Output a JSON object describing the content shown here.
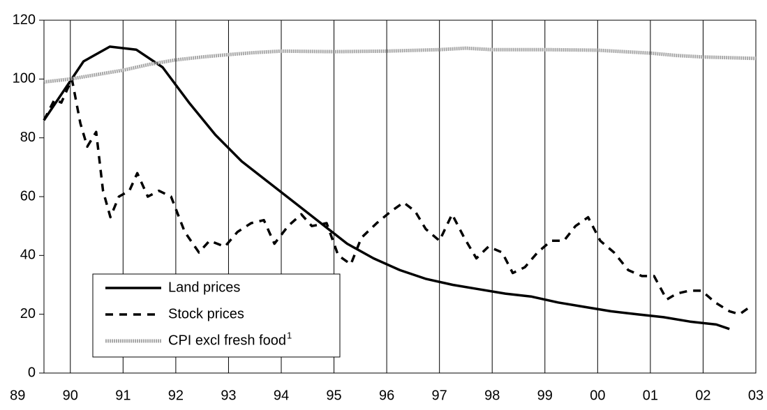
{
  "chart_data": {
    "type": "line",
    "xlim": [
      1989.5,
      2003
    ],
    "ylim": [
      0,
      120
    ],
    "yticks": [
      0,
      20,
      40,
      60,
      80,
      100,
      120
    ],
    "xticks": [
      {
        "value": 1989,
        "label": "89"
      },
      {
        "value": 1990,
        "label": "90"
      },
      {
        "value": 1991,
        "label": "91"
      },
      {
        "value": 1992,
        "label": "92"
      },
      {
        "value": 1993,
        "label": "93"
      },
      {
        "value": 1994,
        "label": "94"
      },
      {
        "value": 1995,
        "label": "95"
      },
      {
        "value": 1996,
        "label": "96"
      },
      {
        "value": 1997,
        "label": "97"
      },
      {
        "value": 1998,
        "label": "98"
      },
      {
        "value": 1999,
        "label": "99"
      },
      {
        "value": 2000,
        "label": "00"
      },
      {
        "value": 2001,
        "label": "01"
      },
      {
        "value": 2002,
        "label": "02"
      },
      {
        "value": 2003,
        "label": "03"
      }
    ],
    "grid": "x",
    "legend": "lower left",
    "series": [
      {
        "name": "Land prices",
        "color": "#000000",
        "style": "solid",
        "x": [
          1989.5,
          1990.25,
          1990.75,
          1991.25,
          1991.75,
          1992.25,
          1992.75,
          1993.25,
          1993.75,
          1994.25,
          1994.75,
          1995.25,
          1995.75,
          1996.25,
          1996.75,
          1997.25,
          1997.75,
          1998.25,
          1998.75,
          1999.25,
          1999.75,
          2000.25,
          2000.75,
          2001.25,
          2001.75,
          2002.25,
          2002.5
        ],
        "values": [
          86,
          106,
          111,
          110,
          104,
          92,
          81,
          72,
          65,
          58,
          51,
          44,
          39,
          35,
          32,
          30,
          28.5,
          27,
          26,
          24,
          22.5,
          21,
          20,
          19,
          17.5,
          16.5,
          15
        ]
      },
      {
        "name": "Stock prices",
        "color": "#000000",
        "style": "dashed",
        "x": [
          1989.5,
          1989.7,
          1989.83,
          1990.03,
          1990.19,
          1990.32,
          1990.49,
          1990.62,
          1990.76,
          1990.92,
          1991.12,
          1991.27,
          1991.47,
          1991.68,
          1991.91,
          1992.17,
          1992.44,
          1992.64,
          1992.93,
          1993.17,
          1993.43,
          1993.67,
          1993.87,
          1994.13,
          1994.38,
          1994.58,
          1994.86,
          1995.08,
          1995.32,
          1995.52,
          1995.81,
          1996.08,
          1996.32,
          1996.54,
          1996.74,
          1997.0,
          1997.24,
          1997.47,
          1997.7,
          1997.93,
          1998.19,
          1998.39,
          1998.62,
          1998.86,
          1999.12,
          1999.36,
          1999.58,
          1999.82,
          2000.05,
          2000.31,
          2000.58,
          2000.84,
          2001.07,
          2001.31,
          2001.5,
          2001.74,
          2001.97,
          2002.23,
          2002.5,
          2002.69,
          2002.85
        ],
        "values": [
          86,
          93,
          92,
          100,
          85,
          77,
          82,
          62,
          53,
          60,
          62,
          68,
          60,
          62,
          60,
          48,
          41,
          45,
          43,
          48,
          51,
          52,
          44,
          50,
          54,
          50,
          51,
          40,
          37,
          46,
          51,
          55,
          58,
          55,
          49,
          45,
          54,
          46,
          39,
          43,
          41,
          34,
          36,
          41,
          45,
          45,
          50,
          53,
          45,
          41,
          35,
          33,
          33,
          25,
          27,
          28,
          28,
          24,
          21,
          20,
          22
        ]
      },
      {
        "name": "CPI excl fresh food",
        "footnote_marker": "1",
        "color": "#a6a6a6",
        "style": "dotted",
        "x": [
          1989.5,
          1990,
          1990.5,
          1991,
          1991.5,
          1992,
          1992.5,
          1993,
          1993.5,
          1994,
          1995,
          1996,
          1997,
          1997.5,
          1998,
          1999,
          2000,
          2000.5,
          2001,
          2001.5,
          2002,
          2003
        ],
        "values": [
          99,
          100,
          101.5,
          103,
          105,
          106.5,
          107.5,
          108.3,
          109,
          109.5,
          109.3,
          109.5,
          110,
          110.5,
          110,
          110,
          109.8,
          109.3,
          108.8,
          108,
          107.5,
          107
        ]
      }
    ]
  }
}
